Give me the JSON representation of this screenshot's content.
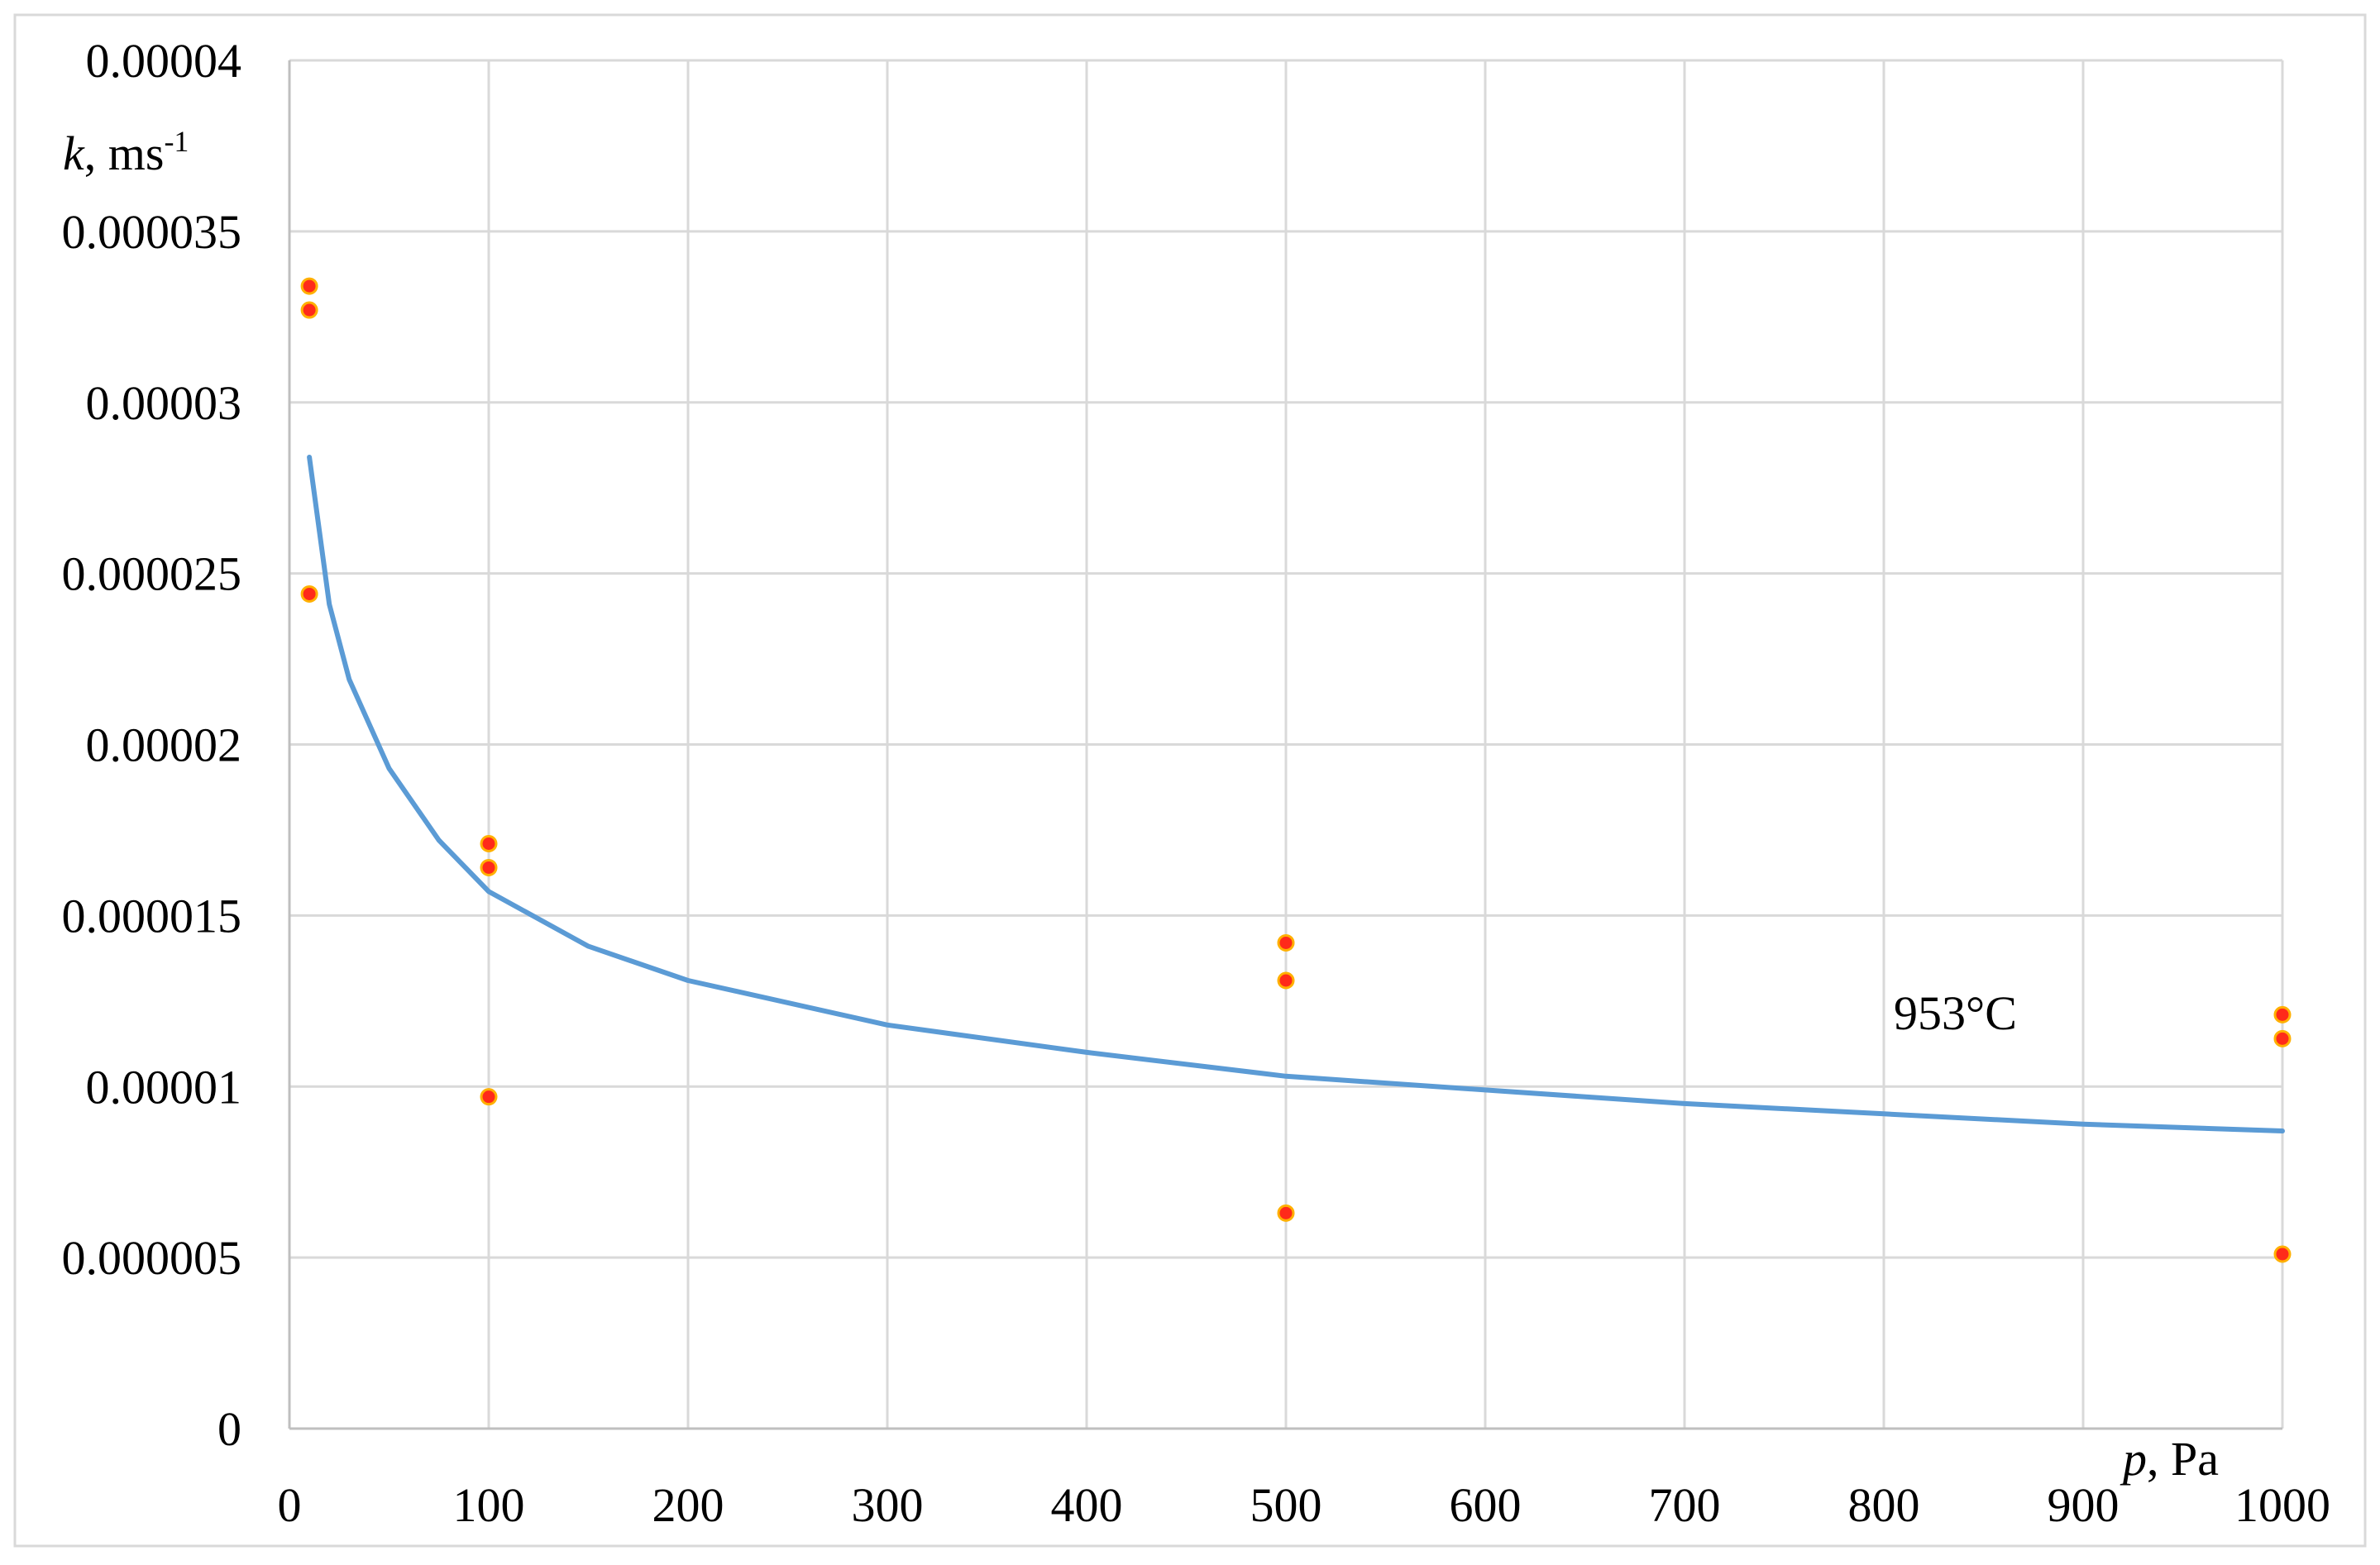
{
  "chart_data": {
    "type": "scatter",
    "title": "",
    "xlabel_var": "p",
    "xlabel_unit": ", Pa",
    "ylabel_var": "k",
    "ylabel_unit": ", ms",
    "ylabel_exp": "-1",
    "xlim": [
      0,
      1000
    ],
    "ylim": [
      0,
      4e-05
    ],
    "grid": true,
    "x_ticks": [
      0,
      100,
      200,
      300,
      400,
      500,
      600,
      700,
      800,
      900,
      1000
    ],
    "x_tick_labels": [
      "0",
      "100",
      "200",
      "300",
      "400",
      "500",
      "600",
      "700",
      "800",
      "900",
      "1000"
    ],
    "y_ticks": [
      0,
      5e-06,
      1e-05,
      1.5e-05,
      2e-05,
      2.5e-05,
      3e-05,
      3.5e-05,
      4e-05
    ],
    "y_tick_labels": [
      "0",
      "0.000005",
      "0.00001",
      "0.000015",
      "0.00002",
      "0.000025",
      "0.00003",
      "0.000035",
      "0.00004"
    ],
    "annotation": "953°C",
    "series": [
      {
        "type": "scatter",
        "marker_color": "#ff2a1a",
        "marker_edge": "#ffb000",
        "x": [
          10,
          10,
          10,
          100,
          100,
          100,
          500,
          500,
          500,
          1000,
          1000,
          1000
        ],
        "y": [
          3.34e-05,
          3.27e-05,
          2.44e-05,
          1.71e-05,
          1.64e-05,
          9.7e-06,
          1.42e-05,
          1.31e-05,
          6.3e-06,
          1.21e-05,
          1.14e-05,
          5.1e-06
        ]
      },
      {
        "type": "line",
        "color": "#5b9bd5",
        "fit": "power",
        "x": [
          10,
          20,
          30,
          50,
          75,
          100,
          150,
          200,
          300,
          400,
          500,
          600,
          700,
          800,
          900,
          1000
        ],
        "y": [
          2.84e-05,
          2.41e-05,
          2.19e-05,
          1.93e-05,
          1.72e-05,
          1.57e-05,
          1.41e-05,
          1.31e-05,
          1.18e-05,
          1.1e-05,
          1.03e-05,
          9.9e-06,
          9.5e-06,
          9.2e-06,
          8.9e-06,
          8.7e-06
        ]
      }
    ]
  }
}
